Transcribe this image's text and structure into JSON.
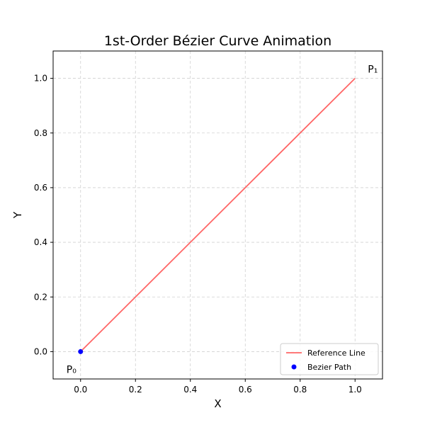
{
  "chart_data": {
    "type": "line",
    "title": "1st-Order Bézier Curve Animation",
    "xlabel": "X",
    "ylabel": "Y",
    "xlim": [
      -0.1,
      1.1
    ],
    "ylim": [
      -0.1,
      1.1
    ],
    "xticks": [
      "0.0",
      "0.2",
      "0.4",
      "0.6",
      "0.8",
      "1.0"
    ],
    "yticks": [
      "0.0",
      "0.2",
      "0.4",
      "0.6",
      "0.8",
      "1.0"
    ],
    "grid": true,
    "legend_position": "lower-right",
    "series": [
      {
        "name": "Reference Line",
        "kind": "line",
        "color": "#ff6666",
        "x": [
          0.0,
          1.0
        ],
        "y": [
          0.0,
          1.0
        ]
      },
      {
        "name": "Bezier Path",
        "kind": "scatter",
        "color": "#0000ff",
        "x": [
          0.0
        ],
        "y": [
          0.0
        ]
      }
    ],
    "annotations": [
      {
        "text": "P₀",
        "x": 0.0,
        "y": 0.0
      },
      {
        "text": "P₁",
        "x": 1.0,
        "y": 1.0
      }
    ]
  }
}
